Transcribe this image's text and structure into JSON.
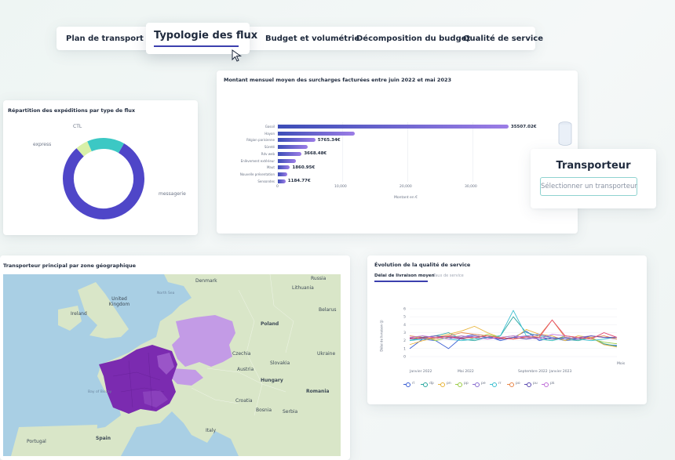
{
  "tabs": {
    "items": [
      {
        "label": "Plan de transport"
      },
      {
        "label": "Typologie des flux"
      },
      {
        "label": "Budget et volumétrie"
      },
      {
        "label": "Décomposition du budget"
      },
      {
        "label": "Qualité de service"
      }
    ],
    "active_index": 1
  },
  "donut": {
    "title": "Répartition des expéditions par type de flux",
    "labels": {
      "ctl": "CTL",
      "express": "express",
      "messagerie": "messagerie"
    },
    "chart_data": {
      "type": "pie",
      "categories": [
        "messagerie",
        "express",
        "CTL"
      ],
      "values": [
        80,
        5,
        15
      ],
      "colors": [
        "#4f46c8",
        "#d8f0a8",
        "#3cc8c4"
      ]
    }
  },
  "bars": {
    "title": "Montant mensuel moyen des surcharges facturées entre juin 2022 et mai 2023",
    "xlabel": "Montant en €",
    "ticks": [
      "10,000",
      "20,000",
      "30,000"
    ],
    "chart_data": {
      "type": "bar",
      "orientation": "horizontal",
      "categories": [
        "Gasoil",
        "Hayon",
        "Région parisienne",
        "Sûreté",
        "Rdv web",
        "Enlèvement extérieur",
        "Maut",
        "Nouvelle présentation",
        "Sensondes"
      ],
      "values": [
        35507.02,
        11800,
        5765.34,
        4600,
        3668.48,
        2800,
        1860.95,
        1500,
        1184.77
      ],
      "value_labels": [
        "35507.02€",
        "",
        "5765.34€",
        "",
        "3668.48€",
        "",
        "1860.95€",
        "",
        "1184.77€"
      ],
      "xlim": [
        0,
        36000
      ],
      "colors": {
        "start": "#3c4db7",
        "end": "#9c7de6"
      }
    }
  },
  "transporteur": {
    "title": "Transporteur",
    "select_placeholder": "Sélectionner un transporteur"
  },
  "map": {
    "title": "Transporteur principal par zone géographique",
    "labels": {
      "denmark": "Denmark",
      "lithuania": "Lithuania",
      "russia": "Russia",
      "united_kingdom": "United Kingdom",
      "ireland": "Ireland",
      "poland": "Poland",
      "belarus": "Belarus",
      "czechia": "Czechia",
      "slovakia": "Slovakia",
      "austria": "Austria",
      "hungary": "Hungary",
      "romania": "Romania",
      "croatia": "Croatia",
      "bosnia": "Bosnia",
      "serbia": "Serbia",
      "spain": "Spain",
      "portugal": "Portugal",
      "italy": "Italy",
      "ukraine": "Ukraine",
      "bay_of_biscay": "Bay of Biscay",
      "north_sea": "North Sea"
    },
    "colors": {
      "sea": "#a9cfe4",
      "land": "#d9e6c8",
      "france": "#7b2bb0",
      "germany": "#c39be6"
    }
  },
  "quality": {
    "title": "Évolution de la qualité de service",
    "tabs": [
      "Délai de livraison moyen",
      "Taux de service"
    ],
    "ylabel": "Délai de livraison (j)",
    "x_ticks": [
      "Janvier 2022",
      "Mai 2022",
      "Septembre 2022",
      "Janvier 2023",
      "Mois"
    ],
    "chart_data": {
      "type": "line",
      "ylim": [
        0,
        6
      ],
      "yticks": [
        0,
        1,
        2,
        3,
        4,
        5,
        6
      ],
      "x": [
        0,
        1,
        2,
        3,
        4,
        5,
        6,
        7,
        8,
        9,
        10,
        11,
        12,
        13,
        14,
        15,
        16
      ],
      "series": [
        {
          "name": "rl",
          "color": "#3a5fd4",
          "values": [
            1.0,
            2.2,
            2.0,
            1.0,
            2.4,
            2.8,
            2.6,
            2.0,
            2.4,
            3.2,
            2.0,
            2.4,
            2.0,
            2.2,
            2.4,
            1.5,
            1.4
          ]
        },
        {
          "name": "dp",
          "color": "#2aa8a0",
          "values": [
            2.0,
            2.4,
            2.6,
            3.0,
            2.2,
            2.0,
            2.4,
            2.6,
            5.0,
            3.0,
            2.6,
            2.4,
            2.2,
            2.0,
            2.4,
            1.6,
            1.3
          ]
        },
        {
          "name": "pn",
          "color": "#e8b43a",
          "values": [
            1.5,
            2.0,
            2.4,
            2.8,
            3.2,
            3.8,
            3.0,
            2.4,
            2.2,
            3.4,
            2.8,
            2.6,
            2.0,
            2.6,
            2.4,
            1.5,
            1.2
          ]
        },
        {
          "name": "pp",
          "color": "#9acc44",
          "values": [
            2.2,
            2.6,
            2.0,
            2.4,
            2.6,
            2.2,
            2.8,
            2.4,
            2.6,
            2.4,
            2.2,
            2.0,
            2.6,
            2.4,
            2.2,
            1.8,
            1.6
          ]
        },
        {
          "name": "pe",
          "color": "#8a6fd0",
          "values": [
            2.4,
            2.2,
            2.4,
            2.6,
            2.4,
            2.6,
            2.4,
            2.2,
            2.4,
            2.6,
            2.8,
            2.4,
            2.2,
            2.4,
            2.6,
            2.4,
            2.2
          ]
        },
        {
          "name": "rr",
          "color": "#3cbfd0",
          "values": [
            2.0,
            2.2,
            2.4,
            2.2,
            2.0,
            2.2,
            2.4,
            2.6,
            5.8,
            2.6,
            2.2,
            2.0,
            2.4,
            2.2,
            2.0,
            2.2,
            2.4
          ]
        },
        {
          "name": "po",
          "color": "#e8874a",
          "values": [
            2.6,
            2.4,
            2.2,
            2.6,
            3.0,
            2.8,
            2.6,
            2.4,
            2.2,
            2.4,
            2.6,
            4.6,
            2.4,
            2.2,
            2.4,
            2.6,
            2.2
          ]
        },
        {
          "name": "pu",
          "color": "#5a4ab0",
          "values": [
            2.2,
            2.4,
            2.6,
            2.4,
            2.2,
            2.6,
            2.4,
            2.2,
            2.4,
            2.2,
            2.4,
            2.2,
            2.4,
            2.2,
            2.6,
            2.4,
            2.4
          ]
        },
        {
          "name": "pk",
          "color": "#c070d8",
          "values": [
            2.4,
            2.6,
            2.4,
            2.2,
            2.6,
            2.4,
            2.2,
            2.4,
            2.6,
            2.4,
            2.2,
            2.8,
            2.6,
            2.4,
            2.2,
            3.0,
            2.4
          ]
        },
        {
          "name": "",
          "color": "#e8506a",
          "values": [
            2.3,
            2.3,
            2.4,
            2.5,
            2.3,
            2.4,
            2.6,
            2.3,
            2.2,
            2.5,
            2.4,
            4.6,
            2.6,
            2.4,
            2.2,
            3.0,
            2.4
          ]
        }
      ]
    }
  }
}
